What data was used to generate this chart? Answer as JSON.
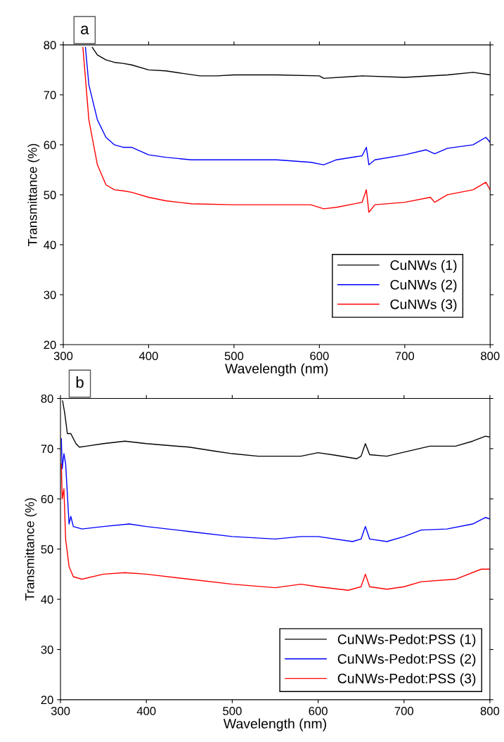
{
  "chart_data": [
    {
      "type": "line",
      "xlabel": "Wavelength (nm)",
      "ylabel": "Transmittance (%)",
      "annotations": [
        "a"
      ],
      "xlim": [
        300,
        800
      ],
      "ylim": [
        20,
        80
      ],
      "xticks": [
        300,
        400,
        500,
        600,
        700,
        800
      ],
      "yticks": [
        20,
        30,
        40,
        50,
        60,
        70,
        80
      ],
      "grid": false,
      "legend": "bottom right",
      "line_style": "solid",
      "marker": "none",
      "series": [
        {
          "name": "CuNWs (1)",
          "color": "#000000",
          "x": [
            334,
            340,
            350,
            360,
            370,
            380,
            400,
            420,
            440,
            460,
            480,
            500,
            550,
            600,
            605,
            650,
            700,
            750,
            780,
            800
          ],
          "values": [
            79.5,
            78,
            77,
            76.5,
            76.3,
            76,
            75,
            74.8,
            74.3,
            73.8,
            73.8,
            74,
            74,
            73.8,
            73.3,
            73.8,
            73.5,
            74,
            74.5,
            74
          ]
        },
        {
          "name": "CuNWs (2)",
          "color": "#0000ff",
          "x": [
            326,
            330,
            340,
            350,
            360,
            370,
            380,
            400,
            420,
            450,
            500,
            550,
            590,
            605,
            620,
            650,
            655,
            658,
            665,
            700,
            725,
            735,
            750,
            780,
            795,
            800
          ],
          "values": [
            79.5,
            72,
            65,
            61.5,
            60,
            59.5,
            59.5,
            58,
            57.5,
            57,
            57,
            57,
            56.5,
            56,
            57,
            57.8,
            59.5,
            56,
            57,
            58,
            59,
            58.2,
            59.3,
            60,
            61.5,
            60.5
          ]
        },
        {
          "name": "CuNWs (3)",
          "color": "#ff0000",
          "x": [
            323,
            330,
            340,
            350,
            360,
            370,
            380,
            400,
            420,
            450,
            500,
            550,
            590,
            605,
            620,
            650,
            655,
            658,
            665,
            700,
            730,
            735,
            750,
            780,
            795,
            800
          ],
          "values": [
            79.5,
            65,
            56,
            52,
            51,
            50.8,
            50.5,
            49.5,
            48.8,
            48.2,
            48,
            48,
            48,
            47.2,
            47.5,
            48.5,
            51,
            46.5,
            48,
            48.5,
            49.5,
            48.5,
            50,
            51,
            52.5,
            51
          ]
        }
      ]
    },
    {
      "type": "line",
      "xlabel": "Wavelength (nm)",
      "ylabel": "Transmittance (%)",
      "annotations": [
        "b"
      ],
      "xlim": [
        300,
        800
      ],
      "ylim": [
        20,
        80
      ],
      "xticks": [
        300,
        400,
        500,
        600,
        700,
        800
      ],
      "yticks": [
        20,
        30,
        40,
        50,
        60,
        70,
        80
      ],
      "grid": false,
      "legend": "bottom right",
      "line_style": "solid",
      "marker": "none",
      "series": [
        {
          "name": "CuNWs-Pedot:PSS (1)",
          "color": "#000000",
          "x": [
            302.5,
            305,
            308,
            312,
            318,
            322,
            330,
            350,
            375,
            400,
            450,
            480,
            500,
            530,
            580,
            600,
            620,
            645,
            650,
            655,
            660,
            680,
            700,
            730,
            760,
            780,
            795,
            800
          ],
          "values": [
            79.5,
            77,
            73,
            73,
            71,
            70.3,
            70.5,
            71,
            71.5,
            71,
            70.3,
            69.5,
            69,
            68.5,
            68.5,
            69.2,
            68.7,
            68,
            68.5,
            71,
            68.8,
            68.5,
            69.3,
            70.5,
            70.5,
            71.5,
            72.5,
            72.3
          ]
        },
        {
          "name": "CuNWs-Pedot:PSS (2)",
          "color": "#0000ff",
          "x": [
            301,
            302,
            304,
            306,
            310,
            312,
            315,
            325,
            350,
            380,
            400,
            450,
            500,
            550,
            580,
            600,
            640,
            650,
            655,
            660,
            680,
            700,
            720,
            750,
            780,
            795,
            800
          ],
          "values": [
            72,
            66,
            69,
            67,
            55,
            56.5,
            54.5,
            54,
            54.5,
            55,
            54.5,
            53.5,
            52.5,
            52,
            52.5,
            52.5,
            51.5,
            52,
            54.5,
            52,
            51.5,
            52.5,
            53.8,
            54,
            55,
            56.3,
            56
          ]
        },
        {
          "name": "CuNWs-Pedot:PSS (3)",
          "color": "#ff0000",
          "x": [
            301,
            302,
            304,
            306,
            310,
            315,
            325,
            350,
            375,
            400,
            450,
            500,
            550,
            580,
            600,
            635,
            650,
            655,
            660,
            680,
            700,
            720,
            760,
            790,
            800
          ],
          "values": [
            67,
            60,
            62,
            52,
            46.5,
            44.5,
            44,
            45,
            45.3,
            45,
            44,
            43,
            42.3,
            43,
            42.5,
            41.8,
            42.5,
            45,
            42.5,
            42,
            42.5,
            43.5,
            44,
            46,
            46
          ]
        }
      ]
    }
  ]
}
